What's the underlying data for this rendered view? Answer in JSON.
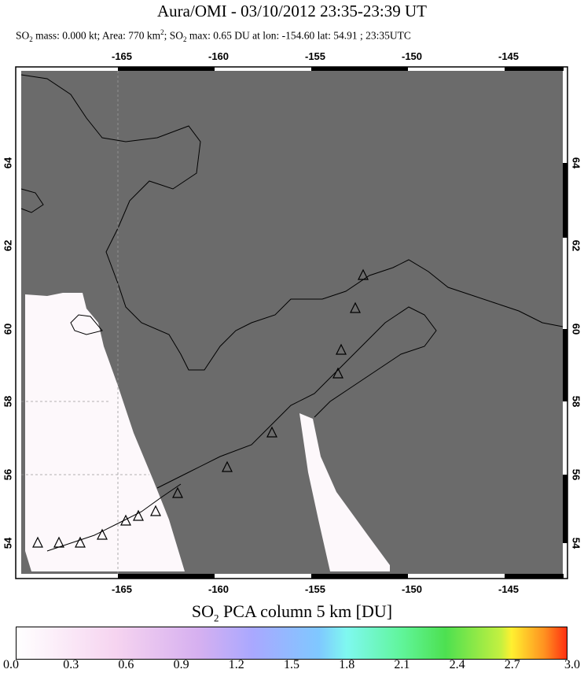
{
  "title": "Aura/OMI - 03/10/2012 23:35-23:39 UT",
  "subtitle": {
    "prefix": "SO",
    "sub": "2",
    "mid": " mass: 0.000 kt; Area: 770 km",
    "sup": "2",
    "mid2": "; SO",
    "sub2": "2",
    "rest": " max: 0.65 DU at lon: -154.60 lat: 54.91 ; 23:35UTC"
  },
  "map": {
    "lon_labels": [
      "-165",
      "-160",
      "-155",
      "-150",
      "-145"
    ],
    "lat_labels": [
      "54",
      "56",
      "58",
      "60",
      "62",
      "64"
    ],
    "background": "#6b6b6b",
    "swath_color": "#ffffff"
  },
  "colorbar": {
    "title_prefix": "SO",
    "title_sub": "2",
    "title_rest": " PCA column 5 km [DU]",
    "ticks": [
      "0.0",
      "0.3",
      "0.6",
      "0.9",
      "1.2",
      "1.5",
      "1.8",
      "2.1",
      "2.4",
      "2.7",
      "3.0"
    ]
  }
}
